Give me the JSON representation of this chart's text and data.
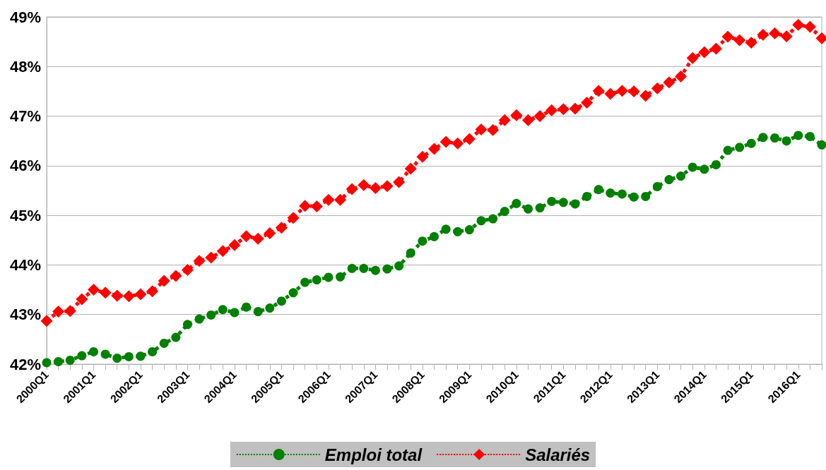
{
  "chart_data": {
    "type": "line",
    "categories": [
      "2000Q1",
      null,
      null,
      null,
      "2001Q1",
      null,
      null,
      null,
      "2002Q1",
      null,
      null,
      null,
      "2003Q1",
      null,
      null,
      null,
      "2004Q1",
      null,
      null,
      null,
      "2005Q1",
      null,
      null,
      null,
      "2006Q1",
      null,
      null,
      null,
      "2007Q1",
      null,
      null,
      null,
      "2008Q1",
      null,
      null,
      null,
      "2009Q1",
      null,
      null,
      null,
      "2010Q1",
      null,
      null,
      null,
      "2011Q1",
      null,
      null,
      null,
      "2012Q1",
      null,
      null,
      null,
      "2013Q1",
      null,
      null,
      null,
      "2014Q1",
      null,
      null,
      null,
      "2015Q1",
      null,
      null,
      null,
      "2016Q1",
      null,
      null
    ],
    "series": [
      {
        "name": "Emploi total",
        "color": "#008000",
        "marker": "circle",
        "values": [
          42.03,
          42.05,
          42.08,
          42.17,
          42.25,
          42.2,
          42.12,
          42.15,
          42.16,
          42.25,
          42.42,
          42.54,
          42.8,
          42.91,
          42.99,
          43.1,
          43.04,
          43.15,
          43.06,
          43.13,
          43.27,
          43.44,
          43.65,
          43.7,
          43.75,
          43.76,
          43.93,
          43.93,
          43.89,
          43.92,
          43.98,
          44.24,
          44.48,
          44.57,
          44.72,
          44.67,
          44.71,
          44.89,
          44.93,
          45.08,
          45.24,
          45.13,
          45.15,
          45.28,
          45.26,
          45.23,
          45.38,
          45.52,
          45.45,
          45.43,
          45.37,
          45.38,
          45.58,
          45.72,
          45.79,
          45.97,
          45.93,
          46.02,
          46.31,
          46.37,
          46.45,
          46.57,
          46.56,
          46.5,
          46.61,
          46.59,
          46.42
        ]
      },
      {
        "name": "Salariés",
        "color": "#ff0000",
        "marker": "diamond",
        "values": [
          42.87,
          43.06,
          43.07,
          43.31,
          43.5,
          43.44,
          43.38,
          43.37,
          43.41,
          43.47,
          43.68,
          43.78,
          43.9,
          44.08,
          44.15,
          44.28,
          44.4,
          44.58,
          44.53,
          44.64,
          44.75,
          44.95,
          45.19,
          45.18,
          45.31,
          45.31,
          45.53,
          45.61,
          45.55,
          45.59,
          45.67,
          45.94,
          46.18,
          46.34,
          46.48,
          46.45,
          46.54,
          46.73,
          46.72,
          46.92,
          47.02,
          46.92,
          47.0,
          47.12,
          47.14,
          47.15,
          47.27,
          47.51,
          47.45,
          47.51,
          47.5,
          47.41,
          47.56,
          47.68,
          47.8,
          48.17,
          48.29,
          48.36,
          48.6,
          48.53,
          48.48,
          48.64,
          48.67,
          48.61,
          48.84,
          48.8,
          48.57
        ]
      }
    ],
    "ylim": [
      42,
      49
    ],
    "yticks": [
      {
        "value": 42,
        "label": "42%"
      },
      {
        "value": 43,
        "label": "43%"
      },
      {
        "value": 44,
        "label": "44%"
      },
      {
        "value": 45,
        "label": "45%"
      },
      {
        "value": 46,
        "label": "46%"
      },
      {
        "value": 47,
        "label": "47%"
      },
      {
        "value": 48,
        "label": "48%"
      },
      {
        "value": 49,
        "label": "49%"
      }
    ],
    "grid": "y",
    "legend": "bottom",
    "line_style": "dotted"
  }
}
